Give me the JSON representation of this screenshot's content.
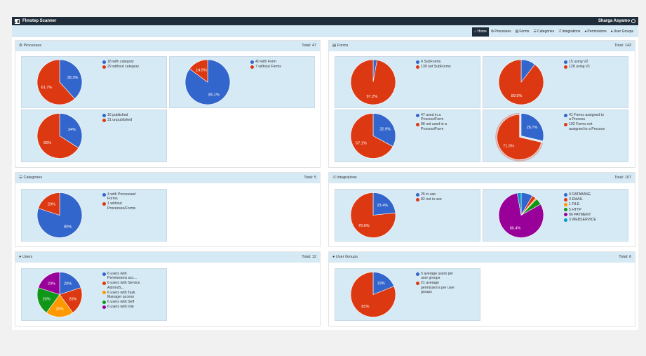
{
  "app": {
    "title": "Flmstep Scanner",
    "user": "Sharga Asyamo"
  },
  "nav": [
    {
      "icon": "home-icon",
      "glyph": "⌂",
      "label": "Home",
      "active": true
    },
    {
      "icon": "gears-icon",
      "glyph": "⚙",
      "label": "Processes"
    },
    {
      "icon": "file-icon",
      "glyph": "▤",
      "label": "Forms"
    },
    {
      "icon": "list-icon",
      "glyph": "☰",
      "label": "Categories"
    },
    {
      "icon": "random-icon",
      "glyph": "⤮",
      "label": "Integrations"
    },
    {
      "icon": "user-icon",
      "glyph": "●",
      "label": "Permissions"
    },
    {
      "icon": "users-icon",
      "glyph": "●",
      "label": "User Groups"
    }
  ],
  "colors": {
    "blue": "#3366cc",
    "red": "#dc3912",
    "orange": "#ff9900",
    "green": "#109618",
    "purple": "#990099",
    "teal": "#0099c6"
  },
  "cards": {
    "processes": {
      "title": "Processes",
      "total": "Total: 47"
    },
    "forms": {
      "title": "Forms",
      "total": "Total: 143"
    },
    "categories": {
      "title": "Categories",
      "total": "Total: 5"
    },
    "integrations": {
      "title": "Integrations",
      "total": "Total: 107"
    },
    "users": {
      "title": "Users",
      "total": "Total: 12"
    },
    "usergroups": {
      "title": "User Groups",
      "total": "Total: 6"
    }
  },
  "charts": [
    {
      "id": "p1",
      "slices": [
        {
          "value": 18,
          "label": "18 with category",
          "pct": "38.3%",
          "color": "#3366cc"
        },
        {
          "value": 29,
          "label": "29 without category",
          "pct": "61.7%",
          "color": "#dc3912"
        }
      ]
    },
    {
      "id": "p2",
      "slices": [
        {
          "value": 40,
          "label": "40 with Form",
          "pct": "85.1%",
          "color": "#3366cc"
        },
        {
          "value": 7,
          "label": "7 without Forms",
          "pct": "14.9%",
          "color": "#dc3912"
        }
      ]
    },
    {
      "id": "p3",
      "slices": [
        {
          "value": 16,
          "label": "16 published",
          "pct": "34%",
          "color": "#3366cc"
        },
        {
          "value": 31,
          "label": "31 unpublished",
          "pct": "66%",
          "color": "#dc3912"
        }
      ]
    },
    {
      "id": "f1",
      "slices": [
        {
          "value": 4,
          "label": "4 SubForms",
          "pct": "",
          "color": "#3366cc"
        },
        {
          "value": 139,
          "label": "139 not SubForms",
          "pct": "97.2%",
          "color": "#dc3912"
        }
      ]
    },
    {
      "id": "f2",
      "slices": [
        {
          "value": 15,
          "label": "15 using V2",
          "pct": "",
          "color": "#3366cc"
        },
        {
          "value": 128,
          "label": "128 using V1",
          "pct": "89.5%",
          "color": "#dc3912"
        }
      ]
    },
    {
      "id": "f3",
      "slices": [
        {
          "value": 47,
          "label": "47 used in a Process/Form",
          "pct": "32.9%",
          "color": "#3366cc"
        },
        {
          "value": 96,
          "label": "96 not used in a Process/Form",
          "pct": "67.1%",
          "color": "#dc3912"
        }
      ]
    },
    {
      "id": "f4",
      "slices": [
        {
          "value": 41,
          "label": "41 Forms assigned to a Process",
          "pct": "28.7%",
          "color": "#3366cc"
        },
        {
          "value": 102,
          "label": "102 Forms not assigned to a Process",
          "pct": "71.3%",
          "color": "#dc3912",
          "explode": true
        }
      ]
    },
    {
      "id": "c1",
      "slices": [
        {
          "value": 4,
          "label": "4 with Processes/ Forms",
          "pct": "80%",
          "color": "#3366cc"
        },
        {
          "value": 1,
          "label": "1 without Processes/Forms",
          "pct": "20%",
          "color": "#dc3912"
        }
      ]
    },
    {
      "id": "i1",
      "slices": [
        {
          "value": 25,
          "label": "25 in use",
          "pct": "23.4%",
          "color": "#3366cc"
        },
        {
          "value": 82,
          "label": "82 not in use",
          "pct": "76.6%",
          "color": "#dc3912"
        }
      ]
    },
    {
      "id": "i2",
      "slices": [
        {
          "value": 9,
          "label": "9 DATABASE",
          "pct": "",
          "color": "#3366cc"
        },
        {
          "value": 3,
          "label": "3 EMAIL",
          "pct": "",
          "color": "#dc3912"
        },
        {
          "value": 1,
          "label": "1 FILE",
          "pct": "",
          "color": "#ff9900"
        },
        {
          "value": 5,
          "label": "5 HTTP",
          "pct": "",
          "color": "#109618"
        },
        {
          "value": 86,
          "label": "86 PAYMENT",
          "pct": "80.4%",
          "color": "#990099"
        },
        {
          "value": 3,
          "label": "3 WEBSERVICE",
          "pct": "",
          "color": "#0099c6"
        }
      ]
    },
    {
      "id": "u1",
      "slices": [
        {
          "value": 6,
          "label": "6 users with Permissions acc...",
          "pct": "20%",
          "color": "#3366cc"
        },
        {
          "value": 6,
          "label": "6 users with Service Admin/S...",
          "pct": "20%",
          "color": "#dc3912"
        },
        {
          "value": 6,
          "label": "6 users with Task Manager access",
          "pct": "20%",
          "color": "#ff9900"
        },
        {
          "value": 6,
          "label": "6 users with Self",
          "pct": "20%",
          "color": "#109618"
        },
        {
          "value": 6,
          "label": "6 users with Inte",
          "pct": "20%",
          "color": "#990099"
        }
      ]
    },
    {
      "id": "g1",
      "slices": [
        {
          "value": 19,
          "label": "5 average users per user groups",
          "pct": "19%",
          "color": "#3366cc"
        },
        {
          "value": 81,
          "label": "21 average permissions per user groups",
          "pct": "81%",
          "color": "#dc3912"
        }
      ]
    }
  ]
}
